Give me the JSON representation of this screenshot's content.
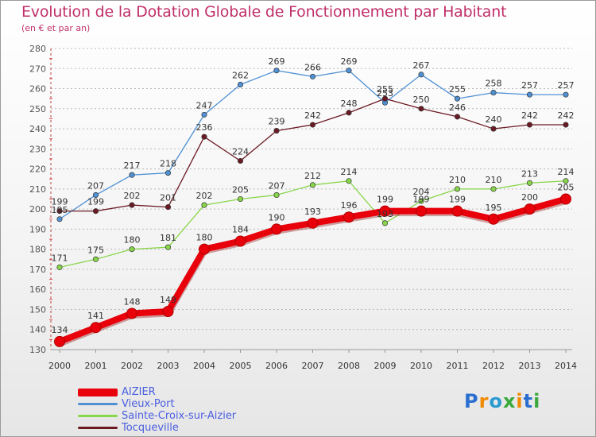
{
  "chart_data": {
    "type": "line",
    "title": "Evolution de la Dotation Globale de Fonctionnement par Habitant",
    "subtitle": "(en € et par an)",
    "xlabel": "",
    "ylabel": "",
    "x": [
      "2000",
      "2001",
      "2002",
      "2003",
      "2004",
      "2005",
      "2006",
      "2007",
      "2008",
      "2009",
      "2010",
      "2011",
      "2012",
      "2013",
      "2014"
    ],
    "ylim": [
      130,
      280
    ],
    "yticks": [
      130,
      140,
      150,
      160,
      170,
      180,
      190,
      200,
      210,
      220,
      230,
      240,
      250,
      260,
      270,
      280
    ],
    "grid": true,
    "series": [
      {
        "name": "AIZIER",
        "color": "#e8000b",
        "values": [
          134,
          141,
          148,
          149,
          180,
          184,
          190,
          193,
          196,
          199,
          199,
          199,
          195,
          200,
          205
        ],
        "labels": [
          "134",
          "141",
          "148",
          "149",
          "180",
          "184",
          "190",
          "193",
          "196",
          "199",
          "199",
          "199",
          "195",
          "200",
          "205"
        ]
      },
      {
        "name": "Vieux-Port",
        "color": "#4f91d4",
        "values": [
          195,
          207,
          217,
          218,
          247,
          262,
          269,
          266,
          269,
          253,
          267,
          255,
          258,
          257,
          257
        ],
        "labels": [
          "195",
          "207",
          "217",
          "218",
          "247",
          "262",
          "269",
          "266",
          "269",
          "253",
          "267",
          "255",
          "258",
          "257",
          "257"
        ]
      },
      {
        "name": "Sainte-Croix-sur-Aizier",
        "color": "#88d64a",
        "values": [
          171,
          175,
          180,
          181,
          202,
          205,
          207,
          212,
          214,
          193,
          204,
          210,
          210,
          213,
          214
        ],
        "labels": [
          "171",
          "175",
          "180",
          "181",
          "202",
          "205",
          "207",
          "212",
          "214",
          "193",
          "204",
          "210",
          "210",
          "213",
          "214"
        ]
      },
      {
        "name": "Tocqueville",
        "color": "#6b1a24",
        "values": [
          199,
          199,
          202,
          201,
          236,
          224,
          239,
          242,
          248,
          255,
          250,
          246,
          240,
          242,
          242
        ],
        "labels": [
          "199",
          "199",
          "202",
          "201",
          "236",
          "224",
          "239",
          "242",
          "248",
          "255",
          "250",
          "246",
          "240",
          "242",
          "242"
        ]
      }
    ],
    "legend_position": "bottom-left"
  },
  "brand": {
    "text": "Proxiti",
    "letters": [
      {
        "ch": "P",
        "color": "#2a6fd0"
      },
      {
        "ch": "r",
        "color": "#f08a00"
      },
      {
        "ch": "o",
        "color": "#2a9ad0"
      },
      {
        "ch": "x",
        "color": "#3aa83a"
      },
      {
        "ch": "i",
        "color": "#f08a00"
      },
      {
        "ch": "t",
        "color": "#2a6fd0"
      },
      {
        "ch": "i",
        "color": "#3aa83a"
      }
    ]
  }
}
